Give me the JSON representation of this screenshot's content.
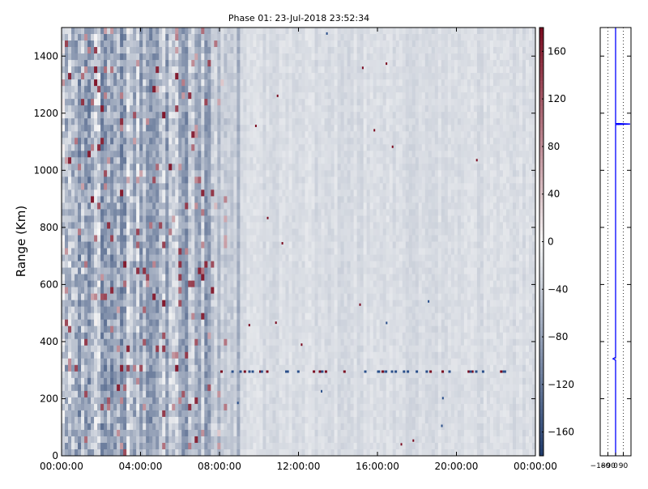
{
  "chart_data": [
    {
      "type": "heatmap",
      "title": "Phase 01: 23-Jul-2018 23:52:34",
      "xlabel": "",
      "ylabel": "Range (Km)",
      "x_ticks": [
        "00:00:00",
        "04:00:00",
        "08:00:00",
        "12:00:00",
        "16:00:00",
        "20:00:00",
        "00:00:00"
      ],
      "y_ticks": [
        0,
        200,
        400,
        600,
        800,
        1000,
        1200,
        1400
      ],
      "ylim": [
        0,
        1500
      ],
      "colorbar": {
        "colormap": "RdBu_r",
        "range": [
          -180,
          180
        ],
        "ticks": [
          -160,
          -120,
          -80,
          -40,
          0,
          40,
          80,
          120,
          160
        ],
        "colors": {
          "low": "#1f3a6b",
          "mid": "#f7f7f7",
          "high": "#7a0a1f"
        }
      },
      "description_regions": [
        {
          "time_range": [
            "00:00:00",
            "09:00:00"
          ],
          "phase_level": -60
        },
        {
          "time_range": [
            "09:00:00",
            "24:00:00"
          ],
          "phase_level": -25
        }
      ],
      "band_at_range_km": 295,
      "grid": false
    },
    {
      "type": "line",
      "title": "",
      "xlabel": "",
      "ylabel": "",
      "x_ticks": [
        -180,
        -90,
        0,
        90
      ],
      "xlim": [
        -180,
        180
      ],
      "ylim": [
        0,
        1500
      ],
      "line_color": "#0000ff",
      "grid": true,
      "points": [
        {
          "phase": 0,
          "range_km": 0
        },
        {
          "phase": 0,
          "range_km": 335
        },
        {
          "phase": -30,
          "range_km": 340
        },
        {
          "phase": 0,
          "range_km": 345
        },
        {
          "phase": 0,
          "range_km": 1160
        },
        {
          "phase": 170,
          "range_km": 1162
        },
        {
          "phase": 0,
          "range_km": 1164
        },
        {
          "phase": 0,
          "range_km": 1500
        }
      ]
    }
  ]
}
